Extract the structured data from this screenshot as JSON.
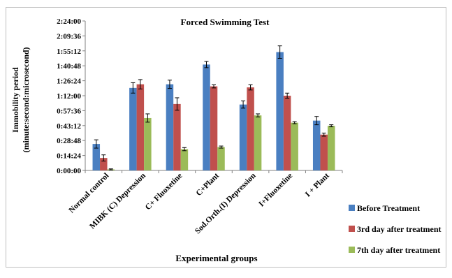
{
  "chart_data": {
    "type": "bar",
    "title": "Forced Swimming Test",
    "ylabel_line1": "Immobility period",
    "ylabel_line2": "(minute:second:microsecond)",
    "xlabel": "Experimental groups",
    "y_ticks": [
      "0:00:00",
      "0:14:24",
      "0:28:48",
      "0:43:12",
      "0:57:36",
      "1:12:00",
      "1:26:24",
      "1:40:48",
      "1:55:12",
      "2:09:36",
      "2:24:00"
    ],
    "ylim": [
      0,
      144
    ],
    "y_unit": "minutes",
    "grid": false,
    "legend_position": "right",
    "categories": [
      "Normal control",
      "MIBK (C) Depression",
      "C+ Fluoxetine",
      "C+Plant",
      "Sod.Orth.(I) Depression",
      "I+Fluoxetine",
      "I + Plant"
    ],
    "series": [
      {
        "name": "Before Treatment",
        "color": "#4a7fc1",
        "values": [
          25.5,
          79.5,
          83,
          102,
          63.5,
          114,
          48
        ],
        "errors": [
          4,
          5,
          4,
          3,
          3.5,
          6,
          4
        ]
      },
      {
        "name": "3rd day after treatment",
        "color": "#c0504d",
        "values": [
          12,
          83,
          64,
          81,
          80,
          72,
          34.5
        ],
        "errors": [
          3,
          4.5,
          6,
          1.5,
          2.5,
          2.5,
          1.5
        ]
      },
      {
        "name": "7th day after treatment",
        "color": "#9bbb59",
        "values": [
          1,
          50.5,
          20.5,
          22.5,
          53,
          46,
          43
        ],
        "errors": [
          0.5,
          4,
          1.5,
          1,
          1.5,
          1,
          1
        ]
      }
    ]
  }
}
